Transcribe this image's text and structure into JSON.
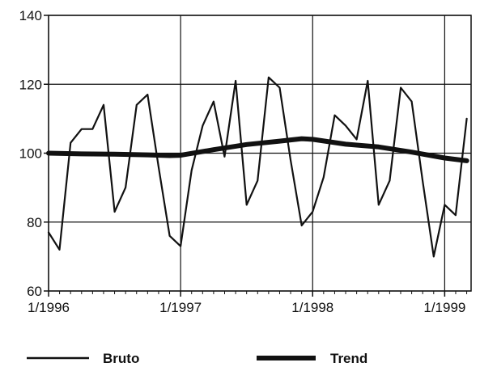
{
  "chart_data": {
    "type": "line",
    "title": "",
    "xlabel": "",
    "ylabel": "",
    "xlim": [
      1996.0,
      1999.2
    ],
    "ylim": [
      60,
      140
    ],
    "x_ticks": [
      {
        "value": 1996.0,
        "label": "1/1996"
      },
      {
        "value": 1997.0,
        "label": "1/1997"
      },
      {
        "value": 1998.0,
        "label": "1/1998"
      },
      {
        "value": 1999.0,
        "label": "1/1999"
      }
    ],
    "y_ticks": [
      {
        "value": 60,
        "label": "60"
      },
      {
        "value": 80,
        "label": "80"
      },
      {
        "value": 100,
        "label": "100"
      },
      {
        "value": 120,
        "label": "120"
      },
      {
        "value": 140,
        "label": "140"
      }
    ],
    "grid": true,
    "legend_position": "bottom",
    "series": [
      {
        "name": "Bruto",
        "style": "thin",
        "color": "#111111",
        "x": [
          1996.0,
          1996.083,
          1996.167,
          1996.25,
          1996.333,
          1996.417,
          1996.5,
          1996.583,
          1996.667,
          1996.75,
          1996.833,
          1996.917,
          1997.0,
          1997.083,
          1997.167,
          1997.25,
          1997.333,
          1997.417,
          1997.5,
          1997.583,
          1997.667,
          1997.75,
          1997.833,
          1997.917,
          1998.0,
          1998.083,
          1998.167,
          1998.25,
          1998.333,
          1998.417,
          1998.5,
          1998.583,
          1998.667,
          1998.75,
          1998.833,
          1998.917,
          1999.0,
          1999.083,
          1999.167
        ],
        "y": [
          77,
          72,
          103,
          107,
          107,
          114,
          83,
          90,
          114,
          117,
          96,
          76,
          73,
          95,
          108,
          115,
          99,
          121,
          85,
          92,
          122,
          119,
          98,
          79,
          83,
          93,
          111,
          108,
          104,
          121,
          85,
          92,
          119,
          115,
          92,
          70,
          85,
          82,
          110
        ]
      },
      {
        "name": "Trend",
        "style": "thick",
        "color": "#111111",
        "x": [
          1996.0,
          1996.25,
          1996.5,
          1996.75,
          1996.917,
          1997.0,
          1997.25,
          1997.5,
          1997.75,
          1997.917,
          1998.0,
          1998.25,
          1998.5,
          1998.75,
          1999.0,
          1999.167
        ],
        "y": [
          100,
          99.8,
          99.7,
          99.5,
          99.3,
          99.4,
          101,
          102.5,
          103.5,
          104.2,
          104,
          102.6,
          101.8,
          100.3,
          98.6,
          97.8
        ]
      }
    ]
  }
}
